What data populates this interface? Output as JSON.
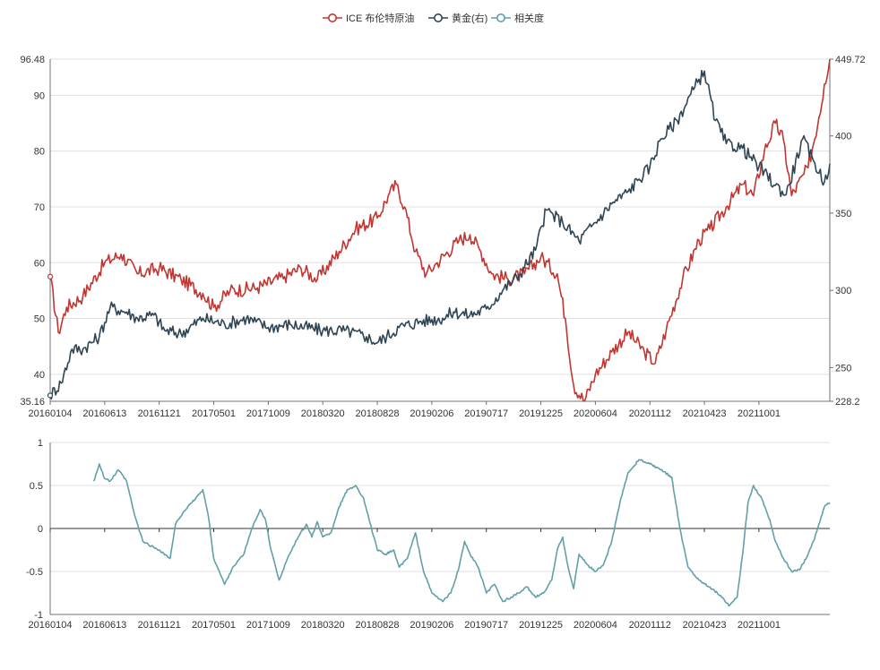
{
  "legend": {
    "items": [
      {
        "label": "ICE 布伦特原油",
        "color": "#c23531"
      },
      {
        "label": "黄金(右)",
        "color": "#2f4554"
      },
      {
        "label": "相关度",
        "color": "#61a0a8"
      }
    ]
  },
  "chart_data": [
    {
      "type": "line",
      "x": [
        "20160104",
        "20160613",
        "20161121",
        "20170501",
        "20171009",
        "20180320",
        "20180828",
        "20190206",
        "20190717",
        "20191225",
        "20200604",
        "20201112",
        "20210423",
        "20211001"
      ],
      "y_left": {
        "min": 35.16,
        "max": 96.48,
        "ticks": [
          35.16,
          40,
          50,
          60,
          70,
          80,
          90,
          96.48
        ]
      },
      "y_right": {
        "min": 228.2,
        "max": 449.72,
        "ticks": [
          228.2,
          250,
          300,
          350,
          400,
          449.72
        ]
      },
      "grid": true,
      "legend_position": "top-center",
      "series": [
        {
          "name": "ICE 布伦特原油",
          "axis": "left",
          "color": "#c23531",
          "points": [
            [
              0,
              57.5
            ],
            [
              0.15,
              47.5
            ],
            [
              0.3,
              52
            ],
            [
              0.6,
              54
            ],
            [
              1,
              60
            ],
            [
              1.3,
              61.5
            ],
            [
              1.6,
              58
            ],
            [
              2,
              59
            ],
            [
              2.4,
              57
            ],
            [
              2.8,
              54.5
            ],
            [
              3,
              52
            ],
            [
              3.3,
              55
            ],
            [
              3.8,
              55.5
            ],
            [
              4.3,
              57.5
            ],
            [
              4.6,
              59
            ],
            [
              4.9,
              57
            ],
            [
              5.3,
              62
            ],
            [
              5.6,
              66
            ],
            [
              6,
              68
            ],
            [
              6.2,
              72
            ],
            [
              6.35,
              74
            ],
            [
              6.5,
              70
            ],
            [
              6.7,
              62
            ],
            [
              6.9,
              58
            ],
            [
              7.1,
              60
            ],
            [
              7.5,
              64
            ],
            [
              7.7,
              65
            ],
            [
              7.9,
              62
            ],
            [
              8.1,
              58
            ],
            [
              8.4,
              57
            ],
            [
              8.7,
              58
            ],
            [
              9,
              61
            ],
            [
              9.3,
              58
            ],
            [
              9.45,
              50
            ],
            [
              9.6,
              38
            ],
            [
              9.8,
              35.2
            ],
            [
              10,
              40
            ],
            [
              10.3,
              44
            ],
            [
              10.6,
              47.5
            ],
            [
              10.9,
              44
            ],
            [
              11.1,
              42
            ],
            [
              11.3,
              48
            ],
            [
              11.6,
              57
            ],
            [
              11.9,
              64
            ],
            [
              12.1,
              66
            ],
            [
              12.4,
              70
            ],
            [
              12.7,
              74
            ],
            [
              12.9,
              72
            ],
            [
              13.1,
              80
            ],
            [
              13.3,
              85
            ],
            [
              13.45,
              82
            ],
            [
              13.6,
              72
            ],
            [
              13.9,
              77
            ],
            [
              14.1,
              86
            ],
            [
              14.2,
              92
            ],
            [
              14.3,
              96.48
            ]
          ]
        },
        {
          "name": "黄金(右)",
          "axis": "right",
          "color": "#2f4554",
          "points": [
            [
              0,
              232
            ],
            [
              0.2,
              240
            ],
            [
              0.4,
              262
            ],
            [
              0.6,
              262
            ],
            [
              0.9,
              270
            ],
            [
              1.1,
              289
            ],
            [
              1.4,
              286
            ],
            [
              1.6,
              282
            ],
            [
              1.9,
              284
            ],
            [
              2.1,
              274
            ],
            [
              2.4,
              272
            ],
            [
              2.8,
              282
            ],
            [
              3.2,
              278
            ],
            [
              3.6,
              282
            ],
            [
              4,
              276
            ],
            [
              4.4,
              278
            ],
            [
              5,
              274
            ],
            [
              5.4,
              274
            ],
            [
              5.8,
              270
            ],
            [
              6,
              266
            ],
            [
              6.4,
              276
            ],
            [
              6.8,
              280
            ],
            [
              7.2,
              282
            ],
            [
              7.4,
              286
            ],
            [
              7.7,
              284
            ],
            [
              8,
              288
            ],
            [
              8.3,
              300
            ],
            [
              8.6,
              310
            ],
            [
              8.9,
              326
            ],
            [
              9.1,
              352
            ],
            [
              9.4,
              344
            ],
            [
              9.7,
              332
            ],
            [
              10,
              344
            ],
            [
              10.3,
              356
            ],
            [
              10.6,
              364
            ],
            [
              10.8,
              372
            ],
            [
              11,
              380
            ],
            [
              11.2,
              398
            ],
            [
              11.5,
              410
            ],
            [
              11.8,
              430
            ],
            [
              12,
              442
            ],
            [
              12.2,
              410
            ],
            [
              12.4,
              395
            ],
            [
              12.7,
              392
            ],
            [
              13,
              380
            ],
            [
              13.3,
              368
            ],
            [
              13.5,
              362
            ],
            [
              13.8,
              398
            ],
            [
              14,
              384
            ],
            [
              14.2,
              370
            ],
            [
              14.3,
              382
            ]
          ]
        }
      ]
    },
    {
      "type": "line",
      "x": [
        "20160104",
        "20160613",
        "20161121",
        "20170501",
        "20171009",
        "20180320",
        "20180828",
        "20190206",
        "20190717",
        "20191225",
        "20200604",
        "20201112",
        "20210423",
        "20211001"
      ],
      "y": {
        "min": -1,
        "max": 1,
        "ticks": [
          -1,
          -0.5,
          0,
          0.5,
          1
        ]
      },
      "grid": true,
      "series": [
        {
          "name": "相关度",
          "color": "#61a0a8",
          "points": [
            [
              0.8,
              0.55
            ],
            [
              0.9,
              0.75
            ],
            [
              1.0,
              0.58
            ],
            [
              1.1,
              0.55
            ],
            [
              1.25,
              0.68
            ],
            [
              1.4,
              0.55
            ],
            [
              1.55,
              0.15
            ],
            [
              1.7,
              -0.15
            ],
            [
              1.9,
              -0.22
            ],
            [
              2.0,
              -0.25
            ],
            [
              2.2,
              -0.35
            ],
            [
              2.3,
              0.05
            ],
            [
              2.45,
              0.2
            ],
            [
              2.6,
              0.3
            ],
            [
              2.8,
              0.45
            ],
            [
              2.9,
              0.15
            ],
            [
              3.0,
              -0.35
            ],
            [
              3.2,
              -0.65
            ],
            [
              3.35,
              -0.45
            ],
            [
              3.55,
              -0.3
            ],
            [
              3.7,
              0.0
            ],
            [
              3.85,
              0.22
            ],
            [
              3.95,
              0.1
            ],
            [
              4.05,
              -0.25
            ],
            [
              4.2,
              -0.6
            ],
            [
              4.35,
              -0.35
            ],
            [
              4.55,
              -0.1
            ],
            [
              4.7,
              0.05
            ],
            [
              4.8,
              -0.1
            ],
            [
              4.9,
              0.08
            ],
            [
              5.0,
              -0.1
            ],
            [
              5.15,
              -0.05
            ],
            [
              5.3,
              0.25
            ],
            [
              5.45,
              0.45
            ],
            [
              5.6,
              0.5
            ],
            [
              5.75,
              0.35
            ],
            [
              5.85,
              0.1
            ],
            [
              6.0,
              -0.25
            ],
            [
              6.15,
              -0.3
            ],
            [
              6.3,
              -0.25
            ],
            [
              6.4,
              -0.45
            ],
            [
              6.55,
              -0.35
            ],
            [
              6.7,
              -0.05
            ],
            [
              6.85,
              -0.5
            ],
            [
              7.0,
              -0.75
            ],
            [
              7.2,
              -0.85
            ],
            [
              7.35,
              -0.75
            ],
            [
              7.5,
              -0.45
            ],
            [
              7.6,
              -0.15
            ],
            [
              7.7,
              -0.3
            ],
            [
              7.85,
              -0.45
            ],
            [
              8.0,
              -0.75
            ],
            [
              8.15,
              -0.65
            ],
            [
              8.3,
              -0.85
            ],
            [
              8.45,
              -0.8
            ],
            [
              8.6,
              -0.75
            ],
            [
              8.75,
              -0.68
            ],
            [
              8.9,
              -0.8
            ],
            [
              9.05,
              -0.75
            ],
            [
              9.2,
              -0.6
            ],
            [
              9.3,
              -0.25
            ],
            [
              9.4,
              -0.1
            ],
            [
              9.5,
              -0.45
            ],
            [
              9.6,
              -0.7
            ],
            [
              9.7,
              -0.3
            ],
            [
              9.85,
              -0.42
            ],
            [
              10.0,
              -0.5
            ],
            [
              10.15,
              -0.42
            ],
            [
              10.3,
              -0.15
            ],
            [
              10.45,
              0.3
            ],
            [
              10.6,
              0.65
            ],
            [
              10.8,
              0.8
            ],
            [
              11.0,
              0.75
            ],
            [
              11.2,
              0.68
            ],
            [
              11.4,
              0.6
            ],
            [
              11.55,
              0.0
            ],
            [
              11.7,
              -0.45
            ],
            [
              11.9,
              -0.6
            ],
            [
              12.1,
              -0.68
            ],
            [
              12.3,
              -0.78
            ],
            [
              12.45,
              -0.9
            ],
            [
              12.6,
              -0.8
            ],
            [
              12.7,
              -0.3
            ],
            [
              12.8,
              0.3
            ],
            [
              12.9,
              0.5
            ],
            [
              13.05,
              0.35
            ],
            [
              13.2,
              0.1
            ],
            [
              13.3,
              -0.15
            ],
            [
              13.45,
              -0.35
            ],
            [
              13.6,
              -0.5
            ],
            [
              13.75,
              -0.48
            ],
            [
              13.9,
              -0.3
            ],
            [
              14.0,
              -0.15
            ],
            [
              14.1,
              0.05
            ],
            [
              14.2,
              0.25
            ],
            [
              14.3,
              0.3
            ]
          ]
        }
      ]
    }
  ]
}
